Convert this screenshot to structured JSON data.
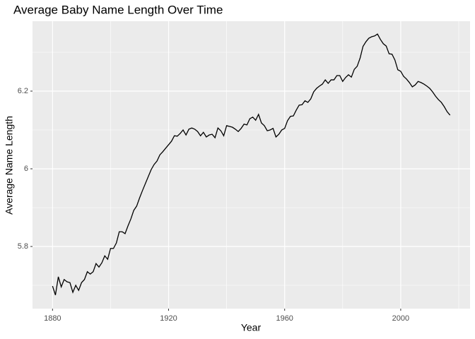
{
  "chart_data": {
    "type": "line",
    "title": "Average Baby Name Length Over Time",
    "x_label": "Year",
    "y_label": "Average Name Length",
    "xlim": [
      1873.1,
      2023.9
    ],
    "ylim": [
      5.64,
      6.38
    ],
    "xticks": [
      1880,
      1920,
      1960,
      2000
    ],
    "yticks": [
      5.8,
      6.0,
      6.2
    ],
    "xminor": [
      1900,
      1940,
      1980,
      2020
    ],
    "yminor": [
      5.7,
      5.9,
      6.1,
      6.3
    ],
    "grid": true,
    "panel_color": "#ebebeb",
    "x": [
      1880,
      1881,
      1882,
      1883,
      1884,
      1885,
      1886,
      1887,
      1888,
      1889,
      1890,
      1891,
      1892,
      1893,
      1894,
      1895,
      1896,
      1897,
      1898,
      1899,
      1900,
      1901,
      1902,
      1903,
      1904,
      1905,
      1906,
      1907,
      1908,
      1909,
      1910,
      1911,
      1912,
      1913,
      1914,
      1915,
      1916,
      1917,
      1918,
      1919,
      1920,
      1921,
      1922,
      1923,
      1924,
      1925,
      1926,
      1927,
      1928,
      1929,
      1930,
      1931,
      1932,
      1933,
      1934,
      1935,
      1936,
      1937,
      1938,
      1939,
      1940,
      1941,
      1942,
      1943,
      1944,
      1945,
      1946,
      1947,
      1948,
      1949,
      1950,
      1951,
      1952,
      1953,
      1954,
      1955,
      1956,
      1957,
      1958,
      1959,
      1960,
      1961,
      1962,
      1963,
      1964,
      1965,
      1966,
      1967,
      1968,
      1969,
      1970,
      1971,
      1972,
      1973,
      1974,
      1975,
      1976,
      1977,
      1978,
      1979,
      1980,
      1981,
      1982,
      1983,
      1984,
      1985,
      1986,
      1987,
      1988,
      1989,
      1990,
      1991,
      1992,
      1993,
      1994,
      1995,
      1996,
      1997,
      1998,
      1999,
      2000,
      2001,
      2002,
      2003,
      2004,
      2005,
      2006,
      2007,
      2008,
      2009,
      2010,
      2011,
      2012,
      2013,
      2014,
      2015,
      2016,
      2017
    ],
    "series": [
      {
        "color": "#000000",
        "values": [
          5.698,
          5.675,
          5.722,
          5.696,
          5.715,
          5.709,
          5.707,
          5.682,
          5.7,
          5.687,
          5.707,
          5.715,
          5.735,
          5.729,
          5.735,
          5.756,
          5.747,
          5.758,
          5.776,
          5.767,
          5.795,
          5.795,
          5.809,
          5.838,
          5.838,
          5.833,
          5.853,
          5.871,
          5.893,
          5.904,
          5.925,
          5.944,
          5.962,
          5.98,
          5.998,
          6.011,
          6.02,
          6.036,
          6.044,
          6.053,
          6.062,
          6.071,
          6.085,
          6.084,
          6.091,
          6.1,
          6.087,
          6.102,
          6.105,
          6.102,
          6.096,
          6.085,
          6.094,
          6.082,
          6.087,
          6.089,
          6.08,
          6.105,
          6.098,
          6.085,
          6.111,
          6.109,
          6.107,
          6.102,
          6.096,
          6.104,
          6.115,
          6.113,
          6.129,
          6.133,
          6.125,
          6.14,
          6.118,
          6.111,
          6.098,
          6.1,
          6.104,
          6.082,
          6.089,
          6.1,
          6.104,
          6.124,
          6.135,
          6.136,
          6.151,
          6.164,
          6.165,
          6.175,
          6.171,
          6.18,
          6.198,
          6.207,
          6.213,
          6.218,
          6.229,
          6.22,
          6.229,
          6.229,
          6.24,
          6.24,
          6.225,
          6.235,
          6.242,
          6.236,
          6.256,
          6.264,
          6.285,
          6.315,
          6.327,
          6.336,
          6.34,
          6.342,
          6.347,
          6.333,
          6.322,
          6.316,
          6.296,
          6.295,
          6.28,
          6.255,
          6.251,
          6.238,
          6.231,
          6.222,
          6.211,
          6.216,
          6.225,
          6.222,
          6.218,
          6.213,
          6.207,
          6.198,
          6.187,
          6.178,
          6.171,
          6.16,
          6.147,
          6.138
        ]
      }
    ]
  }
}
